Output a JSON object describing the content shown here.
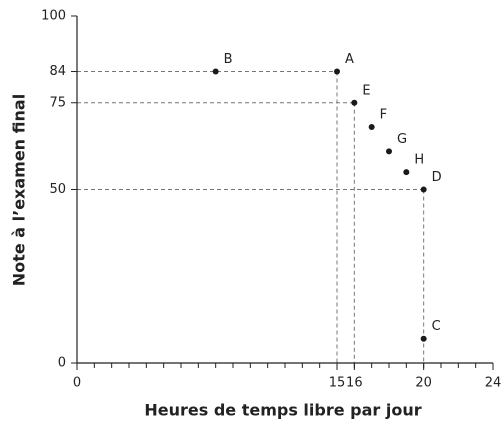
{
  "chart_data": {
    "type": "scatter",
    "xlabel": "Heures de temps libre par jour",
    "ylabel": "Note à l’examen final",
    "labels": [
      "B",
      "A",
      "E",
      "F",
      "G",
      "H",
      "D",
      "C"
    ],
    "x": [
      8,
      15,
      16,
      17,
      18,
      19,
      20,
      20
    ],
    "values": [
      84,
      84,
      75,
      68,
      61,
      55,
      50,
      7
    ],
    "color": "#1a1a1a",
    "guides": [
      "A",
      "E",
      "D"
    ],
    "xlim": [
      0,
      24
    ],
    "xticks": [
      0,
      15,
      16,
      20,
      24
    ],
    "xminor_step": 1,
    "ylim": [
      0,
      100
    ],
    "yticks": [
      0,
      50,
      75,
      84,
      100
    ]
  }
}
